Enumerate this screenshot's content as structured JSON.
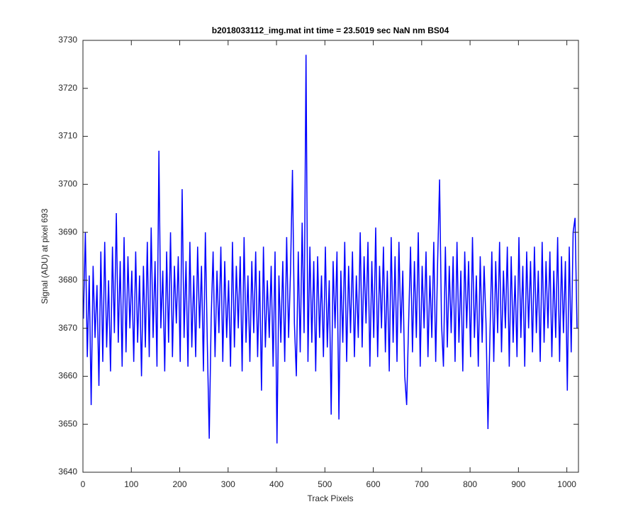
{
  "chart_data": {
    "type": "line",
    "title": "b2018033112_img.mat int time = 23.5019 sec  NaN nm BS04",
    "xlabel": "Track Pixels",
    "ylabel": "Signal (ADU) at pixel 693",
    "color": "#0000ff",
    "xlim": [
      0,
      1024
    ],
    "ylim": [
      3640,
      3730
    ],
    "xticks": [
      0,
      100,
      200,
      300,
      400,
      500,
      600,
      700,
      800,
      900,
      1000
    ],
    "yticks": [
      3640,
      3650,
      3660,
      3670,
      3680,
      3690,
      3700,
      3710,
      3720,
      3730
    ],
    "x": [
      1,
      5,
      9,
      13,
      17,
      21,
      25,
      29,
      33,
      37,
      41,
      45,
      49,
      53,
      57,
      61,
      65,
      69,
      73,
      77,
      81,
      85,
      89,
      93,
      97,
      101,
      105,
      109,
      113,
      117,
      121,
      125,
      129,
      133,
      137,
      141,
      145,
      149,
      153,
      157,
      161,
      165,
      169,
      173,
      177,
      181,
      185,
      189,
      193,
      197,
      201,
      205,
      209,
      213,
      217,
      221,
      225,
      229,
      233,
      237,
      241,
      245,
      249,
      253,
      257,
      261,
      265,
      269,
      273,
      277,
      281,
      285,
      289,
      293,
      297,
      301,
      305,
      309,
      313,
      317,
      321,
      325,
      329,
      333,
      337,
      341,
      345,
      349,
      353,
      357,
      361,
      365,
      369,
      373,
      377,
      381,
      385,
      389,
      393,
      397,
      401,
      405,
      409,
      413,
      417,
      421,
      425,
      429,
      433,
      437,
      441,
      445,
      449,
      453,
      457,
      461,
      465,
      469,
      473,
      477,
      481,
      485,
      489,
      493,
      497,
      501,
      505,
      509,
      513,
      517,
      521,
      525,
      529,
      533,
      537,
      541,
      545,
      549,
      553,
      557,
      561,
      565,
      569,
      573,
      577,
      581,
      585,
      589,
      593,
      597,
      601,
      605,
      609,
      613,
      617,
      621,
      625,
      629,
      633,
      637,
      641,
      645,
      649,
      653,
      657,
      661,
      665,
      669,
      673,
      677,
      681,
      685,
      689,
      693,
      697,
      701,
      705,
      709,
      713,
      717,
      721,
      725,
      729,
      733,
      737,
      741,
      745,
      749,
      753,
      757,
      761,
      765,
      769,
      773,
      777,
      781,
      785,
      789,
      793,
      797,
      801,
      805,
      809,
      813,
      817,
      821,
      825,
      829,
      833,
      837,
      841,
      845,
      849,
      853,
      857,
      861,
      865,
      869,
      873,
      877,
      881,
      885,
      889,
      893,
      897,
      901,
      905,
      909,
      913,
      917,
      921,
      925,
      929,
      933,
      937,
      941,
      945,
      949,
      953,
      957,
      961,
      965,
      969,
      973,
      977,
      981,
      985,
      989,
      993,
      997,
      1001,
      1005,
      1009,
      1013,
      1017,
      1021
    ],
    "values": [
      3672,
      3690,
      3664,
      3681,
      3654,
      3683,
      3668,
      3679,
      3658,
      3686,
      3663,
      3688,
      3666,
      3680,
      3661,
      3687,
      3669,
      3694,
      3667,
      3684,
      3662,
      3689,
      3665,
      3685,
      3670,
      3682,
      3663,
      3686,
      3667,
      3681,
      3660,
      3683,
      3666,
      3688,
      3664,
      3691,
      3668,
      3684,
      3662,
      3707,
      3670,
      3682,
      3661,
      3686,
      3667,
      3690,
      3664,
      3683,
      3671,
      3685,
      3663,
      3699,
      3668,
      3684,
      3662,
      3688,
      3666,
      3681,
      3664,
      3687,
      3670,
      3683,
      3661,
      3690,
      3667,
      3647,
      3672,
      3686,
      3664,
      3682,
      3669,
      3687,
      3663,
      3684,
      3668,
      3680,
      3662,
      3688,
      3666,
      3683,
      3670,
      3685,
      3661,
      3689,
      3667,
      3681,
      3663,
      3684,
      3669,
      3686,
      3664,
      3682,
      3657,
      3687,
      3666,
      3680,
      3668,
      3683,
      3662,
      3686,
      3646,
      3681,
      3667,
      3684,
      3663,
      3689,
      3668,
      3682,
      3703,
      3671,
      3660,
      3686,
      3665,
      3692,
      3669,
      3727,
      3663,
      3687,
      3667,
      3684,
      3661,
      3685,
      3668,
      3681,
      3664,
      3687,
      3666,
      3680,
      3652,
      3684,
      3670,
      3686,
      3651,
      3682,
      3667,
      3688,
      3663,
      3683,
      3669,
      3686,
      3664,
      3681,
      3668,
      3690,
      3666,
      3685,
      3671,
      3688,
      3662,
      3684,
      3668,
      3691,
      3664,
      3683,
      3670,
      3687,
      3665,
      3682,
      3661,
      3689,
      3667,
      3685,
      3663,
      3688,
      3669,
      3682,
      3660,
      3654,
      3671,
      3687,
      3665,
      3684,
      3668,
      3690,
      3662,
      3683,
      3670,
      3686,
      3664,
      3681,
      3668,
      3688,
      3663,
      3684,
      3701,
      3671,
      3662,
      3687,
      3666,
      3683,
      3669,
      3685,
      3663,
      3688,
      3667,
      3682,
      3661,
      3686,
      3670,
      3684,
      3664,
      3689,
      3668,
      3681,
      3662,
      3685,
      3667,
      3683,
      3671,
      3649,
      3668,
      3686,
      3663,
      3684,
      3669,
      3688,
      3665,
      3682,
      3670,
      3687,
      3662,
      3685,
      3667,
      3681,
      3664,
      3689,
      3668,
      3683,
      3662,
      3686,
      3670,
      3684,
      3665,
      3687,
      3669,
      3682,
      3663,
      3688,
      3667,
      3684,
      3670,
      3686,
      3664,
      3682,
      3668,
      3689,
      3663,
      3685,
      3669,
      3684,
      3657,
      3687,
      3665,
      3690,
      3693,
      3670
    ]
  }
}
